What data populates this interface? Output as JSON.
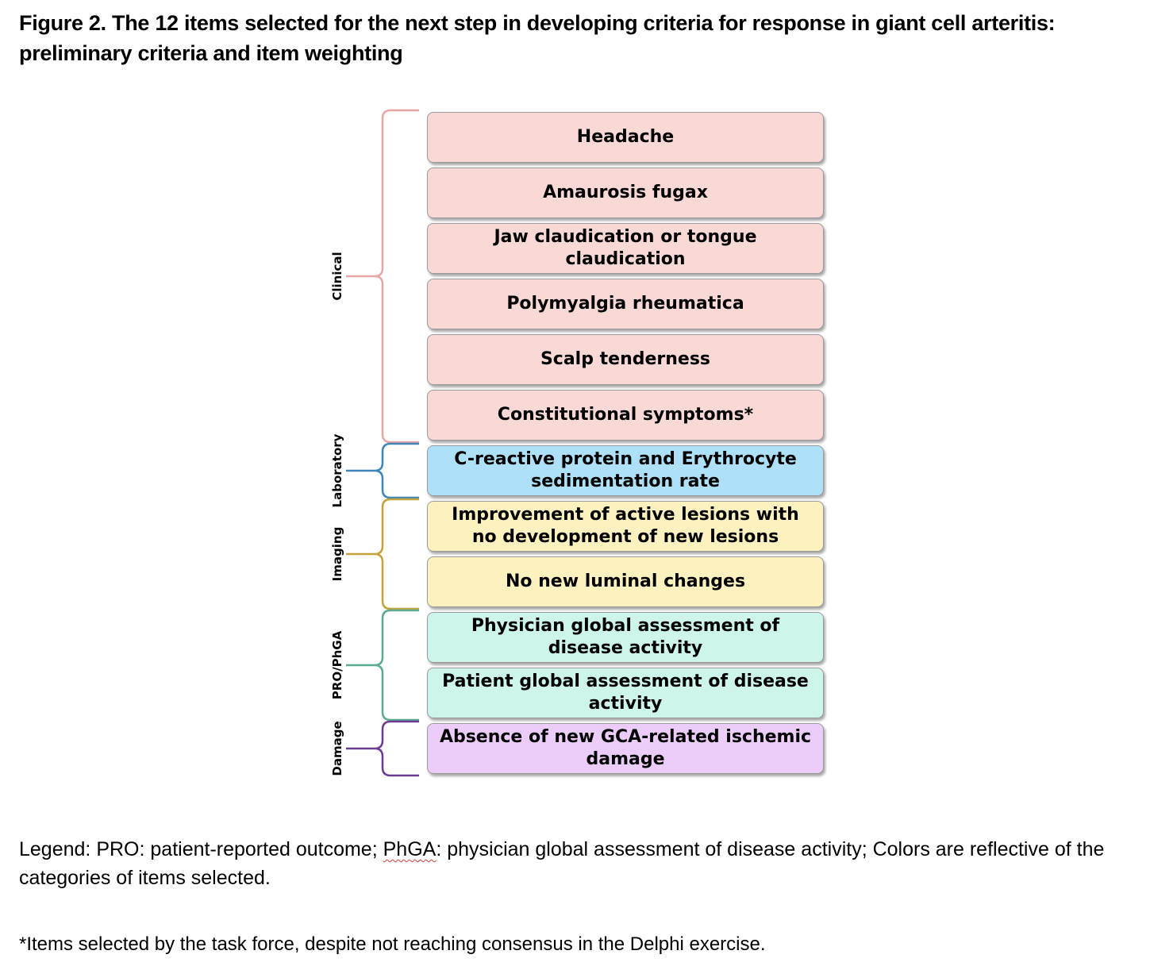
{
  "figure": {
    "title": "Figure 2. The 12 items selected for the next step in developing criteria for response in giant cell arteritis: preliminary criteria and item weighting"
  },
  "categories": [
    {
      "label": "Clinical",
      "color": "#e8a6a6",
      "fill": "#f8d9d5",
      "items": [
        "Headache",
        "Amaurosis fugax",
        "Jaw claudication or tongue claudication",
        "Polymyalgia rheumatica",
        "Scalp tenderness",
        "Constitutional symptoms*"
      ]
    },
    {
      "label": "Laboratory",
      "color": "#3e86b8",
      "fill": "#aee0f8",
      "items": [
        "C-reactive protein and Erythrocyte sedimentation rate"
      ]
    },
    {
      "label": "Imaging",
      "color": "#c4a23c",
      "fill": "#fdf2bf",
      "items": [
        "Improvement of active lesions with no development of new lesions",
        "No new luminal changes"
      ]
    },
    {
      "label": "PRO/PhGA",
      "color": "#5aab94",
      "fill": "#cdf5ec",
      "items": [
        "Physician global assessment of disease activity",
        "Patient global assessment of disease activity"
      ]
    },
    {
      "label": "Damage",
      "color": "#6b3d92",
      "fill": "#ecccf8",
      "items": [
        "Absence of new GCA-related ischemic damage"
      ]
    }
  ],
  "legend": {
    "prefix": "Legend: PRO: patient-reported outcome; ",
    "abbrev": "PhGA",
    "suffix": ": physician global assessment of disease activity; Colors are reflective of the categories of items selected."
  },
  "footnote": "*Items selected by the task force, despite not reaching consensus in the Delphi exercise."
}
